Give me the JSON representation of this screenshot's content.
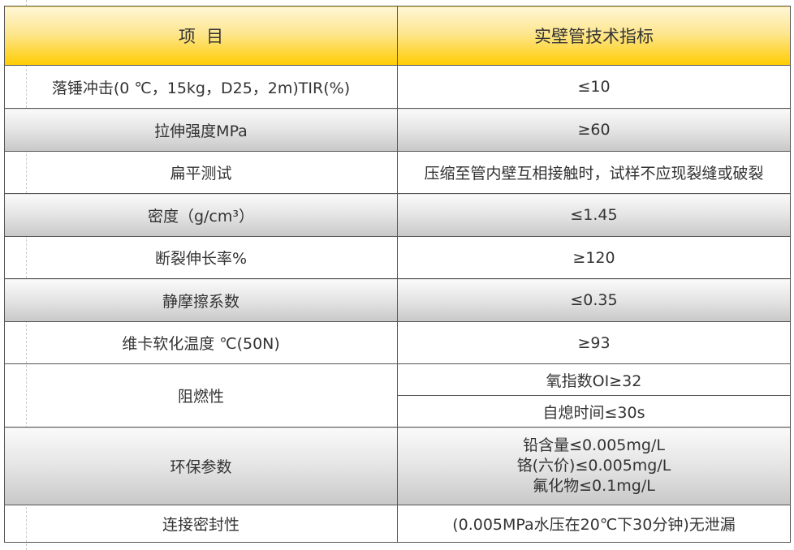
{
  "header": {
    "col1": "项  目",
    "col2": "实壁管技术指标"
  },
  "rows": [
    {
      "item": "落锤冲击(0 ℃，15kg，D25，2m)TIR(%)",
      "value": "≤10"
    },
    {
      "item": "拉伸强度MPa",
      "value": "≥60"
    },
    {
      "item": "扁平测试",
      "value": "压缩至管内壁互相接触时，试样不应现裂缝或破裂"
    },
    {
      "item": "密度（g/cm³）",
      "value": "≤1.45"
    },
    {
      "item": "断裂伸长率%",
      "value": "≥120"
    },
    {
      "item": "静摩擦系数",
      "value": "≤0.35"
    },
    {
      "item": "维卡软化温度 ℃(50N)",
      "value": "≥93"
    },
    {
      "item": "阻燃性",
      "values": [
        "氧指数OI≥32",
        "自熄时间≤30s"
      ]
    },
    {
      "item": "环保参数",
      "lines": [
        "铅含量≤0.005mg/L",
        "铬(六价)≤0.005mg/L",
        "氟化物≤0.1mg/L"
      ]
    },
    {
      "item": "连接密封性",
      "value": "(0.005MPa水压在20℃下30分钟)无泄漏"
    }
  ]
}
